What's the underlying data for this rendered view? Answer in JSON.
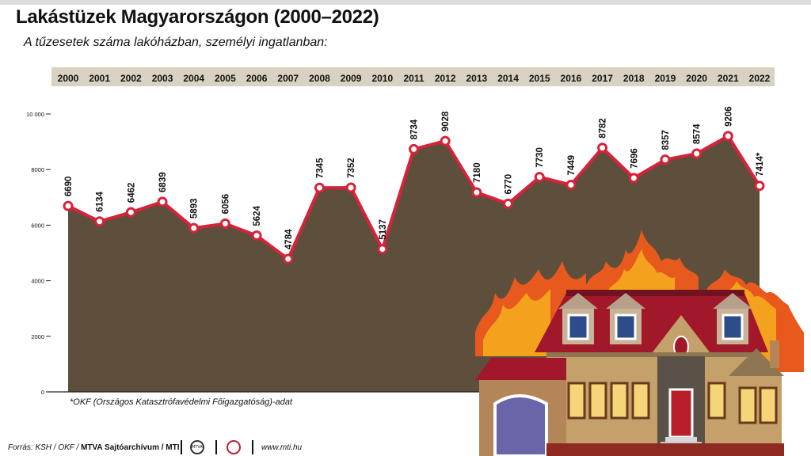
{
  "header": {
    "title": "Lakástüzek Magyarországon (2000–2022)",
    "subtitle": "A tűzesetek száma lakóházban, személyi ingatlanban:"
  },
  "footnote": "*OKF (Országos Katasztrófavédelmi Főigazgatóság)-adat",
  "footer": {
    "source_prefix": "Forrás: KSH / OKF / ",
    "source_bold": "MTVA Sajtóarchívum / MTI",
    "website": "www.mti.hu",
    "logo_text": "MTVA"
  },
  "colors": {
    "area_fill": "#5d4f3c",
    "line": "#d7223a",
    "marker_fill": "#ffffff",
    "year_band": "#d9d2c3"
  },
  "chart_data": {
    "type": "area",
    "title": "Lakástüzek Magyarországon (2000–2022)",
    "subtitle": "A tűzesetek száma lakóházban, személyi ingatlanban:",
    "categories": [
      "2000",
      "2001",
      "2002",
      "2003",
      "2004",
      "2005",
      "2006",
      "2007",
      "2008",
      "2009",
      "2010",
      "2011",
      "2012",
      "2013",
      "2014",
      "2015",
      "2016",
      "2017",
      "2018",
      "2019",
      "2020",
      "2021",
      "2022"
    ],
    "series": [
      {
        "values": [
          6690,
          6134,
          6462,
          6839,
          5893,
          6056,
          5624,
          4784,
          7345,
          7352,
          5137,
          8734,
          9028,
          7180,
          6770,
          7730,
          7449,
          8782,
          7696,
          8357,
          8574,
          9206,
          7414
        ]
      }
    ],
    "data_labels": [
      "6690",
      "6134",
      "6462",
      "6839",
      "5893",
      "6056",
      "5624",
      "4784",
      "7345",
      "7352",
      "5137",
      "8734",
      "9028",
      "7180",
      "6770",
      "7730",
      "7449",
      "8782",
      "7696",
      "8357",
      "8574",
      "9206",
      "7414*"
    ],
    "y_ticks": [
      0,
      2000,
      4000,
      6000,
      8000,
      10000
    ],
    "y_tick_labels": [
      "0",
      "2000",
      "4000",
      "6000",
      "8000",
      "10 000"
    ],
    "ylim": [
      0,
      10000
    ],
    "xlabel": "",
    "ylabel": "",
    "grid": false,
    "legend": "none"
  }
}
